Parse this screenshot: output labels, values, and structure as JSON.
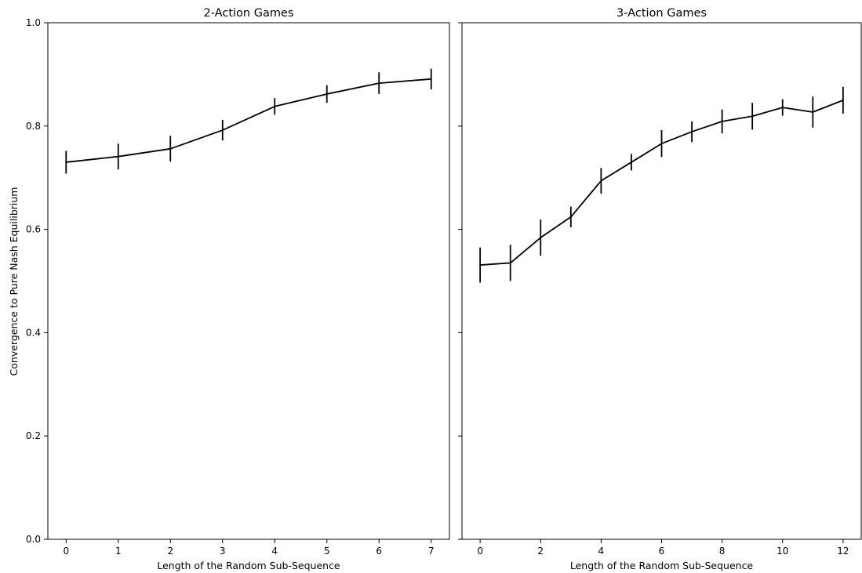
{
  "figure": {
    "ylabel": "Convergence to Pure Nash Equilibrium",
    "line_color": "#000000"
  },
  "chart_data": [
    {
      "type": "line",
      "title": "2-Action Games",
      "xlabel": "Length of the Random Sub-Sequence",
      "ylabel": "Convergence to Pure Nash Equilibrium",
      "xlim": [
        -0.35,
        7.35
      ],
      "ylim": [
        0.0,
        1.0
      ],
      "x_ticks": [
        0,
        1,
        2,
        3,
        4,
        5,
        6,
        7
      ],
      "y_ticks": [
        0.0,
        0.2,
        0.4,
        0.6,
        0.8,
        1.0
      ],
      "y_tick_labels_shown": true,
      "grid": false,
      "x": [
        0,
        1,
        2,
        3,
        4,
        5,
        6,
        7
      ],
      "y": [
        0.73,
        0.741,
        0.756,
        0.792,
        0.838,
        0.862,
        0.883,
        0.891
      ],
      "yerr": [
        0.022,
        0.025,
        0.025,
        0.02,
        0.016,
        0.017,
        0.021,
        0.02
      ]
    },
    {
      "type": "line",
      "title": "3-Action Games",
      "xlabel": "Length of the Random Sub-Sequence",
      "ylabel": "",
      "xlim": [
        -0.6,
        12.6
      ],
      "ylim": [
        0.0,
        1.0
      ],
      "x_ticks": [
        0,
        2,
        4,
        6,
        8,
        10,
        12
      ],
      "y_ticks": [
        0.0,
        0.2,
        0.4,
        0.6,
        0.8,
        1.0
      ],
      "y_tick_labels_shown": false,
      "grid": false,
      "x": [
        0,
        1,
        2,
        3,
        4,
        5,
        6,
        7,
        8,
        9,
        10,
        11,
        12
      ],
      "y": [
        0.531,
        0.535,
        0.584,
        0.624,
        0.694,
        0.73,
        0.766,
        0.789,
        0.809,
        0.819,
        0.836,
        0.827,
        0.85
      ],
      "yerr": [
        0.034,
        0.035,
        0.035,
        0.02,
        0.025,
        0.016,
        0.026,
        0.02,
        0.023,
        0.026,
        0.016,
        0.03,
        0.026
      ]
    }
  ]
}
